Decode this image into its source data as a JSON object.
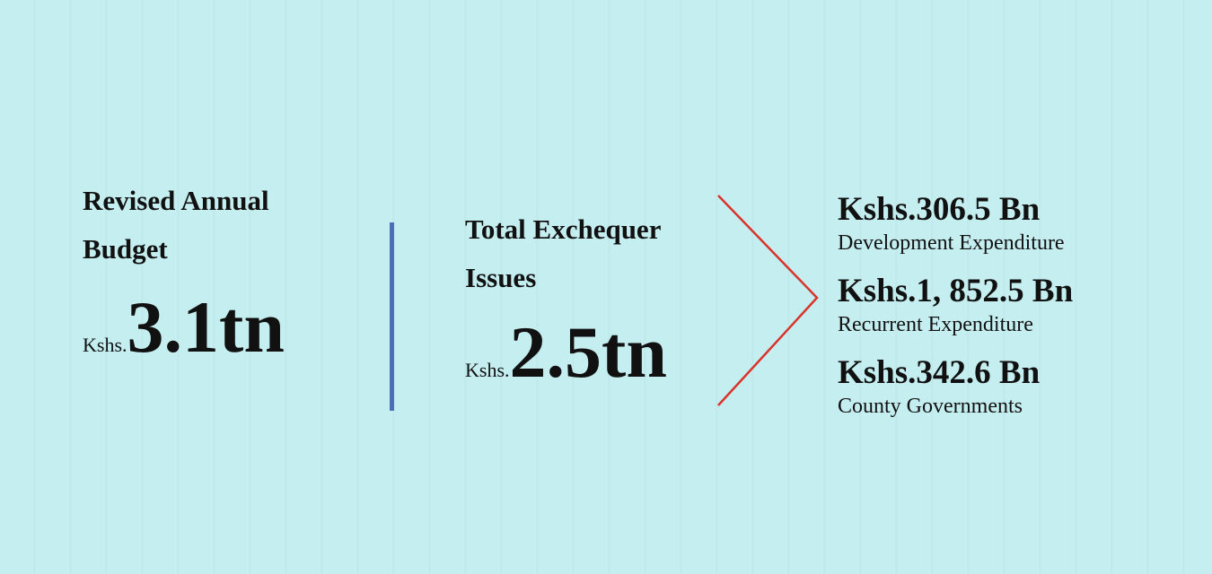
{
  "budget": {
    "title": "Revised Annual Budget",
    "prefix": "Kshs.",
    "amount": "3.1tn"
  },
  "exchequer": {
    "title": "Total Exchequer Issues",
    "prefix": "Kshs.",
    "amount": "2.5tn"
  },
  "breakdown": [
    {
      "amount": "Kshs.306.5 Bn",
      "label": "Development Expenditure"
    },
    {
      "amount": "Kshs.1, 852.5 Bn",
      "label": "Recurrent Expenditure"
    },
    {
      "amount": "Kshs.342.6 Bn",
      "label": "County Governments"
    }
  ]
}
